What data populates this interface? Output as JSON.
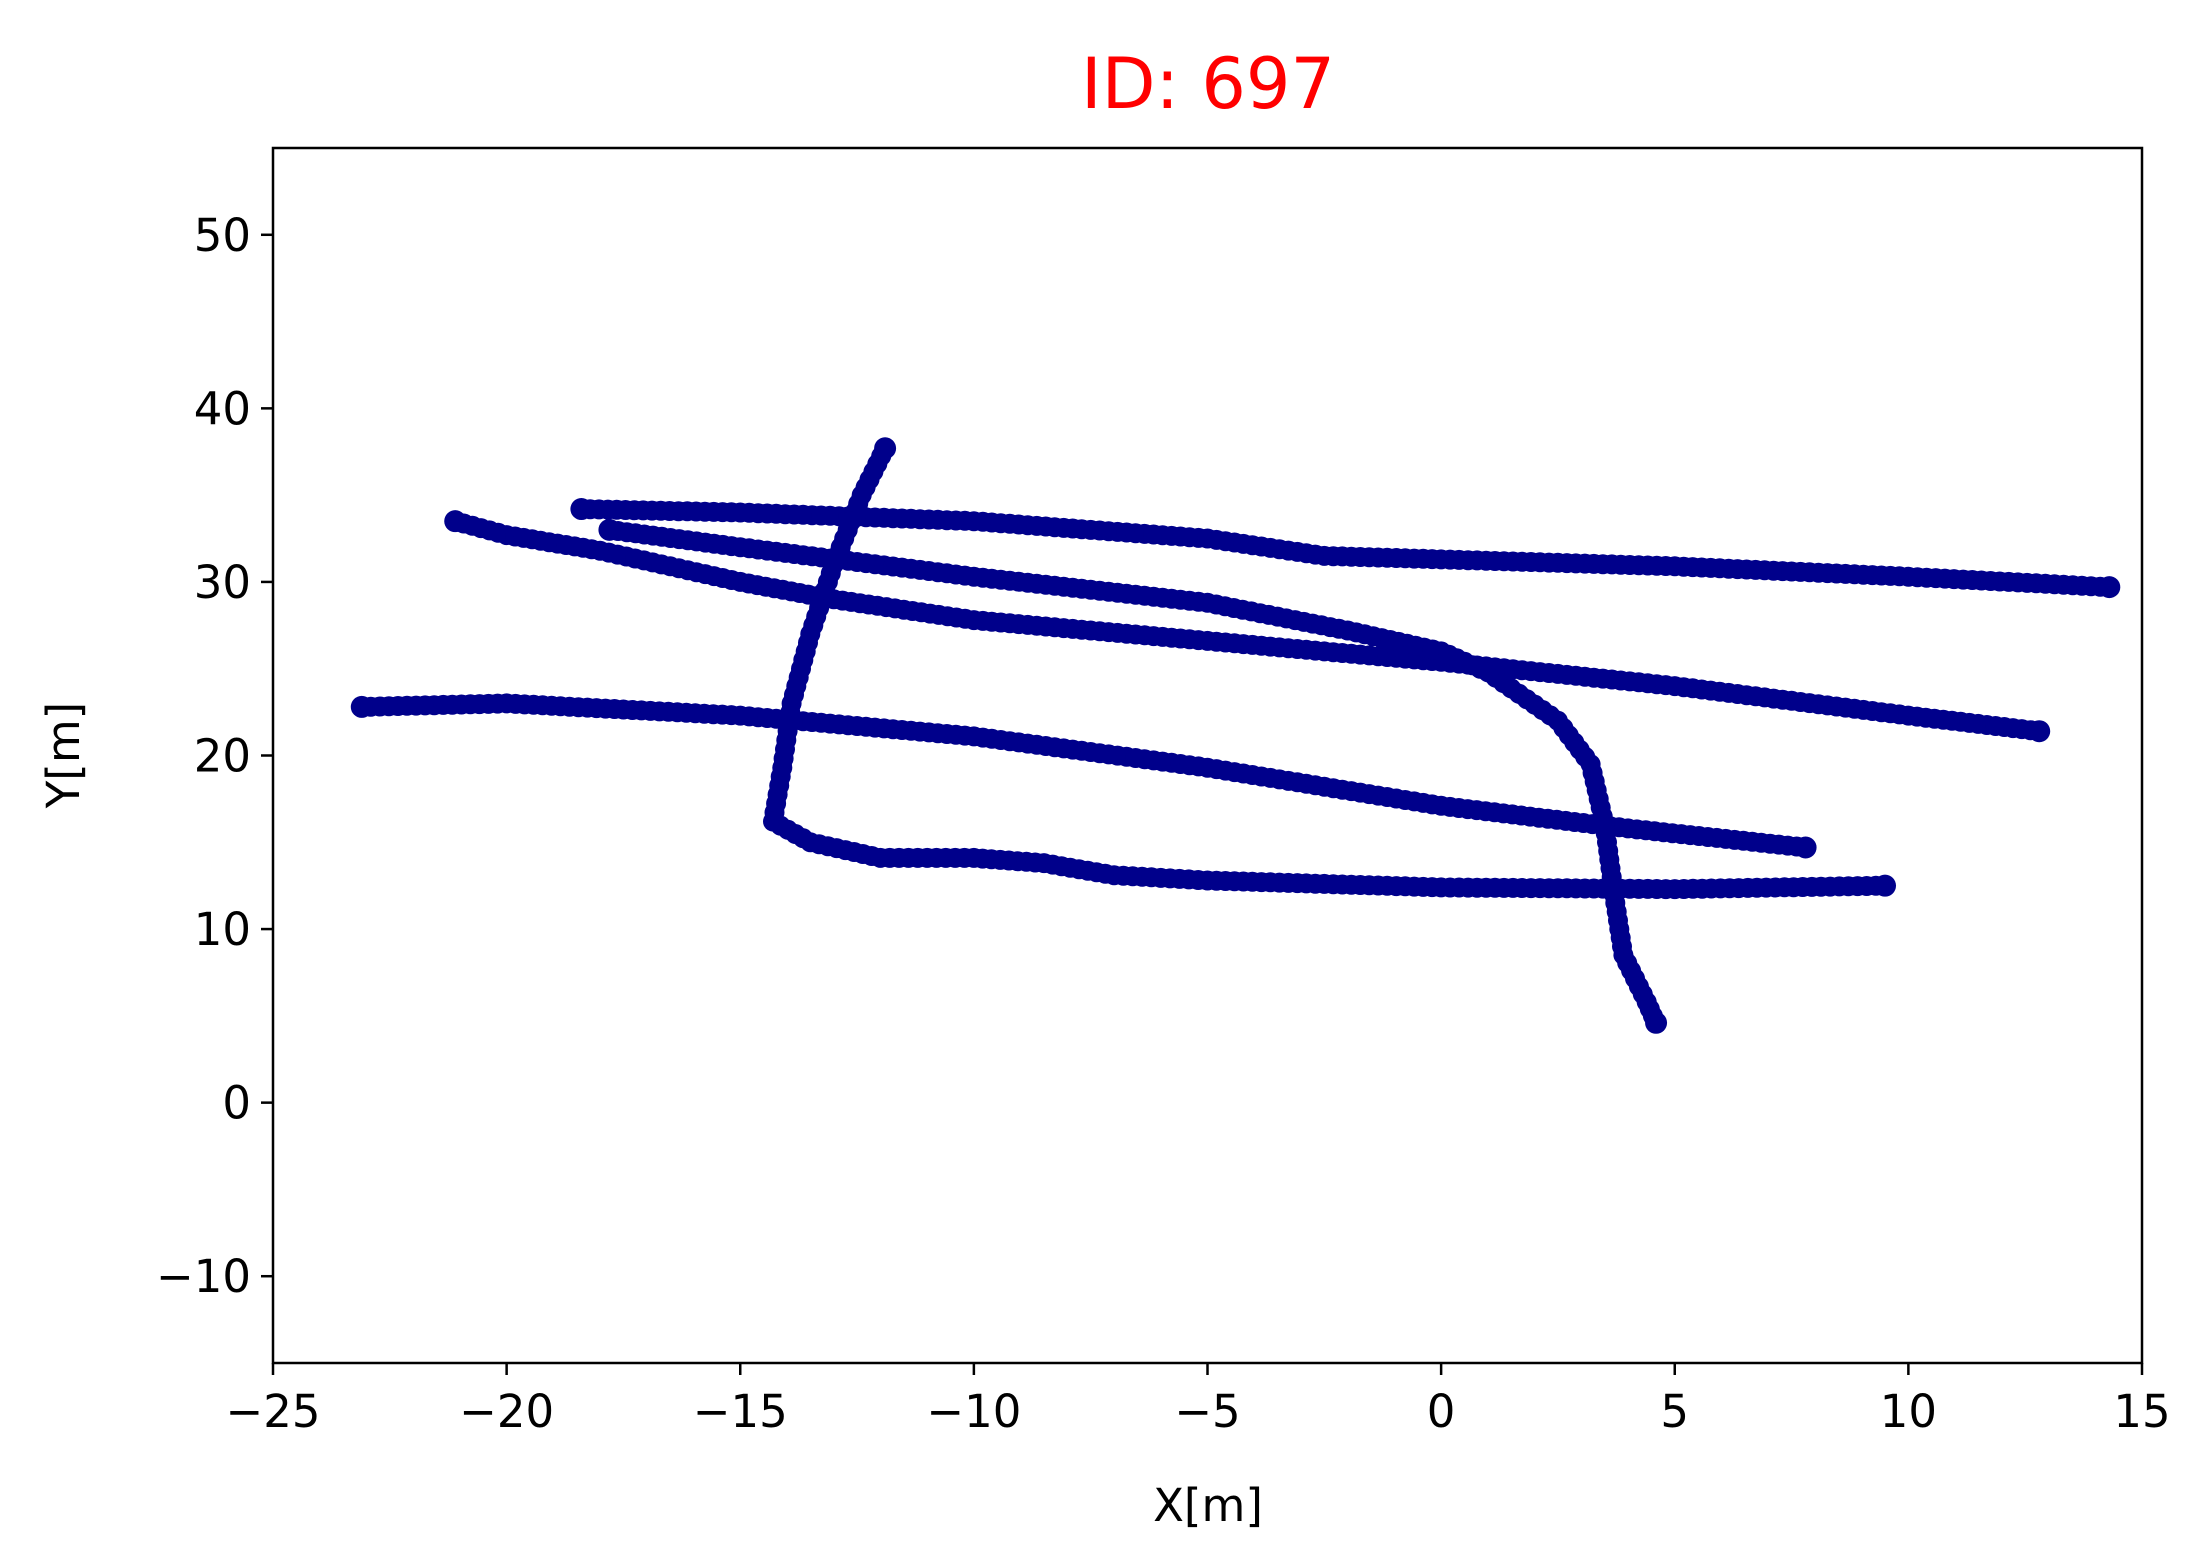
{
  "chart_data": {
    "type": "scatter",
    "title": "ID: 697",
    "title_color": "#ff0000",
    "xlabel": "X[m]",
    "ylabel": "Y[m]",
    "xlim": [
      -25,
      15
    ],
    "ylim": [
      -15,
      55
    ],
    "xticks": [
      -25,
      -20,
      -15,
      -10,
      -5,
      0,
      5,
      10,
      15
    ],
    "xtick_labels": [
      "−25",
      "−20",
      "−15",
      "−10",
      "−5",
      "0",
      "5",
      "10",
      "15"
    ],
    "yticks": [
      -10,
      0,
      10,
      20,
      30,
      40,
      50
    ],
    "ytick_labels": [
      "−10",
      "0",
      "10",
      "20",
      "30",
      "40",
      "50"
    ],
    "grid": false,
    "marker_color": "#00008b",
    "series": [
      {
        "points": [
          [
            -23.1,
            22.8
          ],
          [
            -20,
            23.0
          ],
          [
            -15,
            22.3
          ],
          [
            -10,
            21.1
          ],
          [
            -5,
            19.3
          ],
          [
            0,
            17.1
          ],
          [
            4,
            15.8
          ],
          [
            7.8,
            14.7
          ]
        ]
      },
      {
        "points": [
          [
            -21.1,
            33.5
          ],
          [
            -20,
            32.7
          ],
          [
            -18,
            31.8
          ],
          [
            -15,
            30.0
          ],
          [
            -13,
            29.0
          ],
          [
            -10,
            27.8
          ],
          [
            -5,
            26.6
          ],
          [
            0,
            25.4
          ],
          [
            5,
            24.0
          ],
          [
            10,
            22.3
          ],
          [
            12.8,
            21.4
          ]
        ]
      },
      {
        "points": [
          [
            -18.4,
            34.2
          ],
          [
            -15,
            34.0
          ],
          [
            -10,
            33.5
          ],
          [
            -5,
            32.5
          ],
          [
            -2.5,
            31.5
          ],
          [
            0,
            31.3
          ],
          [
            5,
            30.9
          ],
          [
            10,
            30.3
          ],
          [
            14.3,
            29.7
          ]
        ]
      },
      {
        "points": [
          [
            -17.8,
            33.0
          ],
          [
            -15,
            32.0
          ],
          [
            -10,
            30.3
          ],
          [
            -5,
            28.8
          ],
          [
            -2,
            27.2
          ],
          [
            0,
            26.0
          ],
          [
            1,
            24.8
          ],
          [
            2.5,
            22.0
          ],
          [
            3.2,
            19.5
          ],
          [
            3.5,
            16.0
          ],
          [
            3.7,
            12.0
          ],
          [
            3.9,
            8.5
          ],
          [
            4.4,
            5.8
          ],
          [
            4.6,
            4.6
          ]
        ]
      },
      {
        "points": [
          [
            -11.9,
            37.7
          ],
          [
            -12.4,
            35.0
          ],
          [
            -13,
            31.0
          ],
          [
            -13.5,
            27.0
          ],
          [
            -13.9,
            23.0
          ],
          [
            -14.1,
            19.3
          ],
          [
            -14.3,
            16.2
          ],
          [
            -13.5,
            15.0
          ],
          [
            -12,
            14.1
          ],
          [
            -10,
            14.1
          ],
          [
            -8.5,
            13.8
          ],
          [
            -7,
            13.1
          ],
          [
            -5,
            12.8
          ],
          [
            0,
            12.4
          ],
          [
            5,
            12.3
          ],
          [
            9.5,
            12.5
          ]
        ]
      }
    ]
  }
}
